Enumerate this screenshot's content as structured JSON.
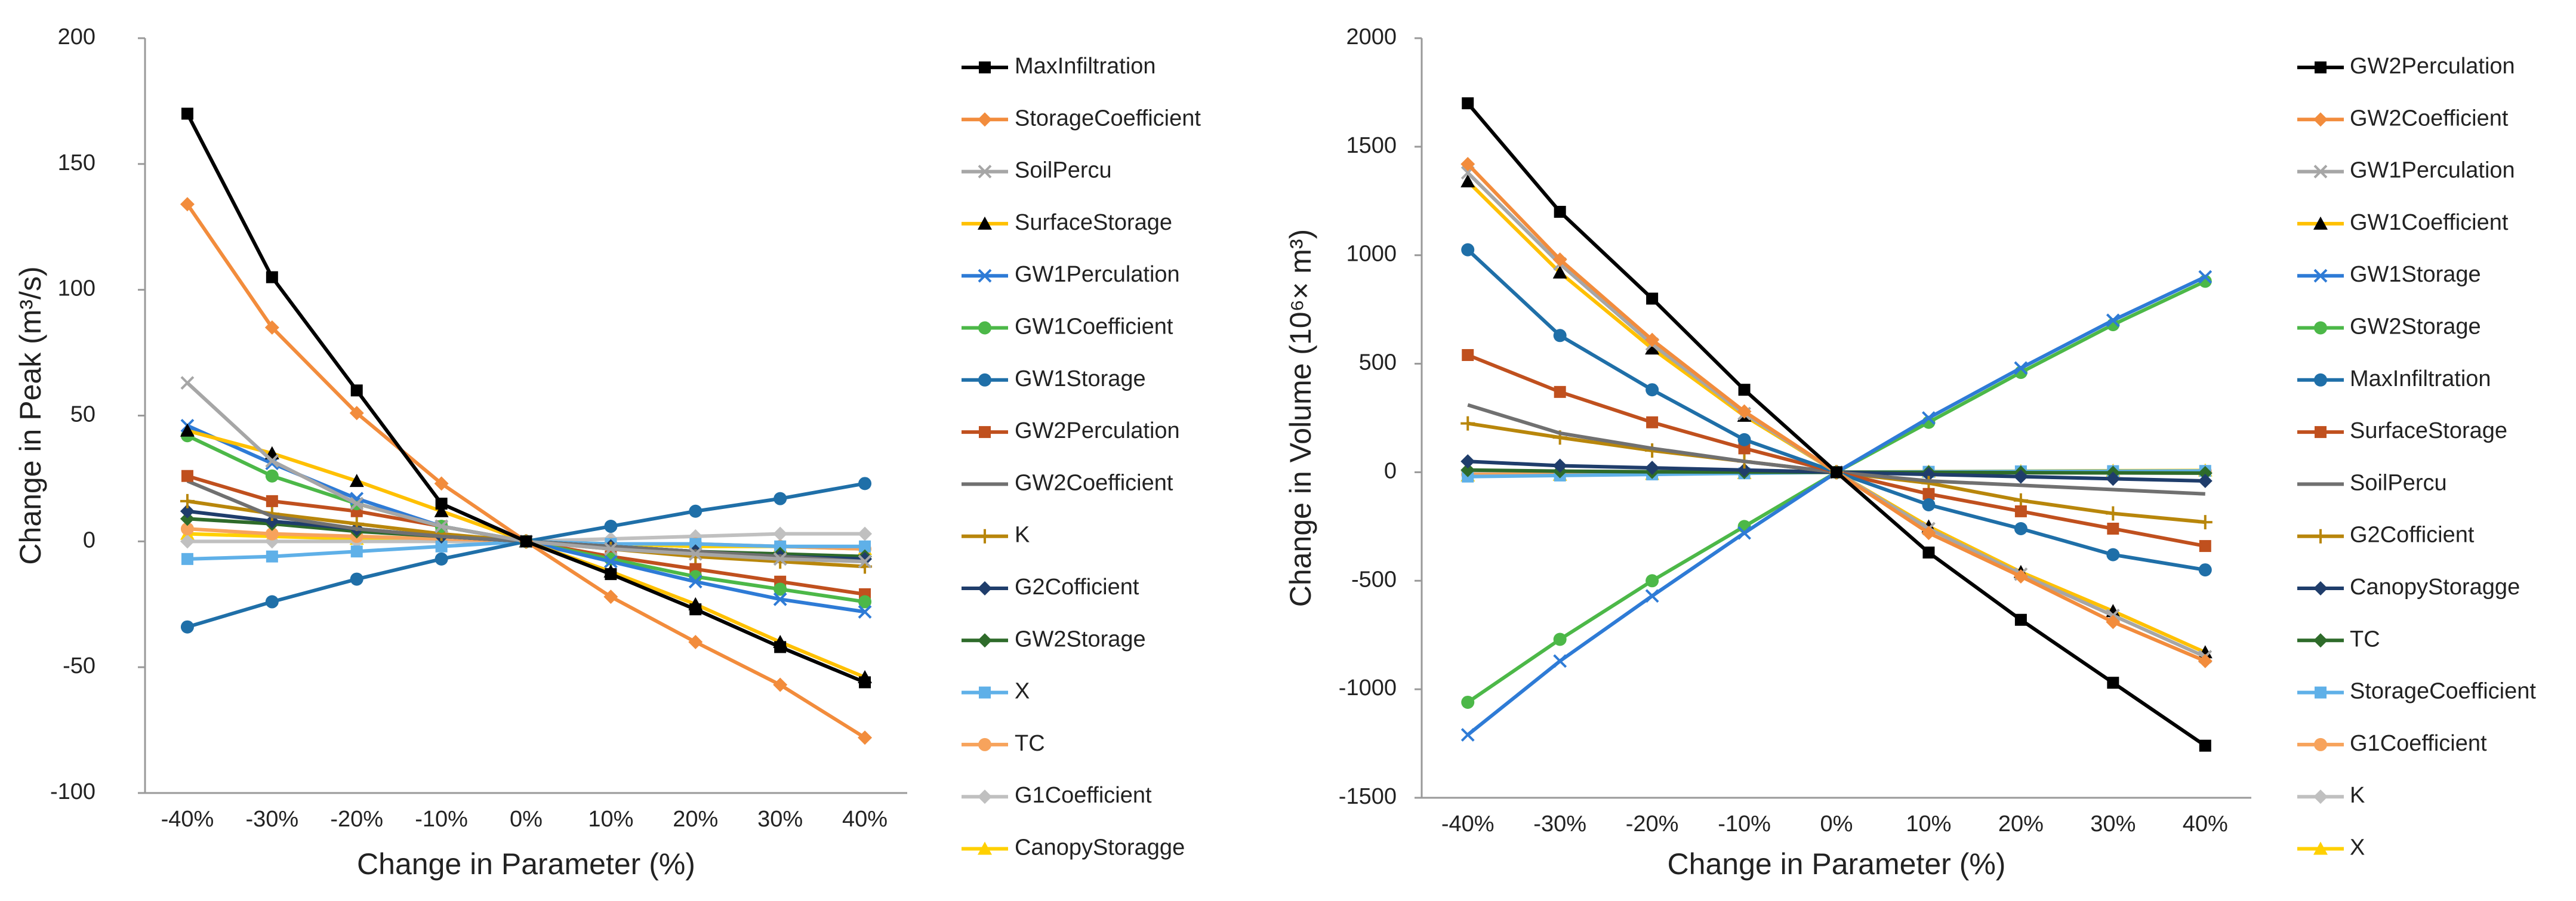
{
  "chart_data": [
    {
      "type": "line",
      "x_label": "Change in Parameter (%)",
      "y_label": "Change in Peak (m³/s)",
      "categories": [
        "-40%",
        "-30%",
        "-20%",
        "-10%",
        "0%",
        "10%",
        "20%",
        "30%",
        "40%"
      ],
      "ylim": [
        -100,
        200
      ],
      "yticks": [
        -100,
        -50,
        0,
        50,
        100,
        150,
        200
      ],
      "series": [
        {
          "name": "MaxInfiltration",
          "color": "#000000",
          "marker": "square",
          "values": [
            170,
            105,
            60,
            15,
            0,
            -13,
            -27,
            -42,
            -56
          ]
        },
        {
          "name": "StorageCoefficient",
          "color": "#f28c3c",
          "marker": "diamond",
          "values": [
            134,
            85,
            51,
            23,
            0,
            -22,
            -40,
            -57,
            -78
          ]
        },
        {
          "name": "SoilPercu",
          "color": "#a6a6a6",
          "marker": "x",
          "values": [
            63,
            32,
            15,
            6,
            0,
            -3,
            -5,
            -7,
            -8
          ]
        },
        {
          "name": "SurfaceStorage",
          "color": "#ffc000",
          "marker": "triangle",
          "marker_color": "#000000",
          "values": [
            44,
            35,
            24,
            12,
            0,
            -12,
            -25,
            -40,
            -54
          ]
        },
        {
          "name": "GW1Perculation",
          "color": "#2e7bd6",
          "marker": "x",
          "values": [
            46,
            31,
            17,
            6,
            0,
            -8,
            -16,
            -23,
            -28
          ]
        },
        {
          "name": "GW1Coefficient",
          "color": "#4cb848",
          "marker": "circle",
          "values": [
            42,
            26,
            15,
            6,
            0,
            -7,
            -14,
            -19,
            -24
          ]
        },
        {
          "name": "GW1Storage",
          "color": "#1f6fa8",
          "marker": "circle",
          "values": [
            -34,
            -24,
            -15,
            -7,
            0,
            6,
            12,
            17,
            23
          ]
        },
        {
          "name": "GW2Perculation",
          "color": "#c0501e",
          "marker": "square",
          "values": [
            26,
            16,
            12,
            6,
            0,
            -6,
            -11,
            -16,
            -21
          ]
        },
        {
          "name": "GW2Coefficient",
          "color": "#707070",
          "marker": "none",
          "values": [
            24,
            10,
            5,
            2,
            0,
            -2,
            -4,
            -6,
            -8
          ]
        },
        {
          "name": "K",
          "color": "#b8860b",
          "marker": "plus",
          "values": [
            16,
            11,
            7,
            3,
            0,
            -3,
            -6,
            -8,
            -10
          ]
        },
        {
          "name": "G2Cofficient",
          "color": "#1f3d6b",
          "marker": "diamond",
          "values": [
            12,
            8,
            5,
            2,
            0,
            -2,
            -4,
            -6,
            -7
          ]
        },
        {
          "name": "GW2Storage",
          "color": "#2e6b2a",
          "marker": "diamond",
          "values": [
            9,
            7,
            4,
            2,
            0,
            -2,
            -4,
            -5,
            -6
          ]
        },
        {
          "name": "X",
          "color": "#5fb0e8",
          "marker": "square",
          "values": [
            -7,
            -6,
            -4,
            -2,
            0,
            -1,
            -1,
            -2,
            -2
          ]
        },
        {
          "name": "TC",
          "color": "#f7a35c",
          "marker": "circle",
          "values": [
            5,
            3,
            2,
            1,
            0,
            -1,
            -1,
            -2,
            -3
          ]
        },
        {
          "name": "G1Coefficient",
          "color": "#c0c0c0",
          "marker": "diamond",
          "values": [
            0,
            0,
            0,
            0,
            0,
            1,
            2,
            3,
            3
          ]
        },
        {
          "name": "CanopyStoragge",
          "color": "#ffd000",
          "marker": "triangle",
          "values": [
            3,
            2,
            1,
            0,
            0,
            -1,
            -2,
            -2,
            -3
          ]
        }
      ]
    },
    {
      "type": "line",
      "x_label": "Change in Parameter (%)",
      "y_label": "Change in Volume (10⁶× m³)",
      "categories": [
        "-40%",
        "-30%",
        "-20%",
        "-10%",
        "0%",
        "10%",
        "20%",
        "30%",
        "40%"
      ],
      "ylim": [
        -1500,
        2000
      ],
      "yticks": [
        -1500,
        -1000,
        -500,
        0,
        500,
        1000,
        1500,
        2000
      ],
      "series": [
        {
          "name": "GW2Perculation",
          "color": "#000000",
          "marker": "square",
          "values": [
            1700,
            1200,
            800,
            380,
            0,
            -370,
            -680,
            -970,
            -1260
          ]
        },
        {
          "name": "GW2Coefficient",
          "color": "#f28c3c",
          "marker": "diamond",
          "values": [
            1420,
            980,
            610,
            280,
            0,
            -280,
            -480,
            -690,
            -870
          ]
        },
        {
          "name": "GW1Perculation",
          "color": "#a6a6a6",
          "marker": "x",
          "values": [
            1380,
            960,
            590,
            270,
            0,
            -260,
            -470,
            -660,
            -850
          ]
        },
        {
          "name": "GW1Coefficient",
          "color": "#ffc000",
          "marker": "triangle",
          "marker_color": "#000000",
          "values": [
            1340,
            920,
            570,
            260,
            0,
            -250,
            -460,
            -640,
            -830
          ]
        },
        {
          "name": "GW1Storage",
          "color": "#2e7bd6",
          "marker": "x",
          "values": [
            -1210,
            -870,
            -570,
            -280,
            0,
            250,
            480,
            700,
            900
          ]
        },
        {
          "name": "GW2Storage",
          "color": "#4cb848",
          "marker": "circle",
          "values": [
            -1060,
            -770,
            -500,
            -250,
            0,
            230,
            460,
            680,
            880
          ]
        },
        {
          "name": "MaxInfiltration",
          "color": "#1f6fa8",
          "marker": "circle",
          "values": [
            1025,
            630,
            380,
            150,
            0,
            -150,
            -260,
            -380,
            -450
          ]
        },
        {
          "name": "SurfaceStorage",
          "color": "#c0501e",
          "marker": "square",
          "values": [
            540,
            370,
            230,
            110,
            0,
            -100,
            -180,
            -260,
            -340
          ]
        },
        {
          "name": "SoilPercu",
          "color": "#707070",
          "marker": "none",
          "values": [
            310,
            180,
            110,
            50,
            0,
            -40,
            -60,
            -80,
            -100
          ]
        },
        {
          "name": "G2Cofficient",
          "color": "#b8860b",
          "marker": "plus",
          "values": [
            225,
            160,
            100,
            50,
            0,
            -50,
            -130,
            -190,
            -230
          ]
        },
        {
          "name": "CanopyStoragge",
          "color": "#1f3d6b",
          "marker": "diamond",
          "values": [
            50,
            30,
            20,
            10,
            0,
            -10,
            -20,
            -30,
            -40
          ]
        },
        {
          "name": "TC",
          "color": "#2e6b2a",
          "marker": "diamond",
          "values": [
            10,
            5,
            2,
            1,
            0,
            -1,
            -2,
            -3,
            -4
          ]
        },
        {
          "name": "StorageCoefficient",
          "color": "#5fb0e8",
          "marker": "square",
          "values": [
            -20,
            -15,
            -10,
            -5,
            0,
            2,
            4,
            5,
            6
          ]
        },
        {
          "name": "G1Coefficient",
          "color": "#f7a35c",
          "marker": "circle",
          "values": [
            -10,
            -8,
            -5,
            -2,
            0,
            1,
            2,
            3,
            4
          ]
        },
        {
          "name": "K",
          "color": "#c0c0c0",
          "marker": "diamond",
          "values": [
            5,
            4,
            3,
            1,
            0,
            -1,
            -2,
            -3,
            -4
          ]
        },
        {
          "name": "X",
          "color": "#ffd000",
          "marker": "triangle",
          "values": [
            -15,
            -12,
            -8,
            -4,
            0,
            3,
            5,
            7,
            8
          ]
        }
      ]
    }
  ]
}
